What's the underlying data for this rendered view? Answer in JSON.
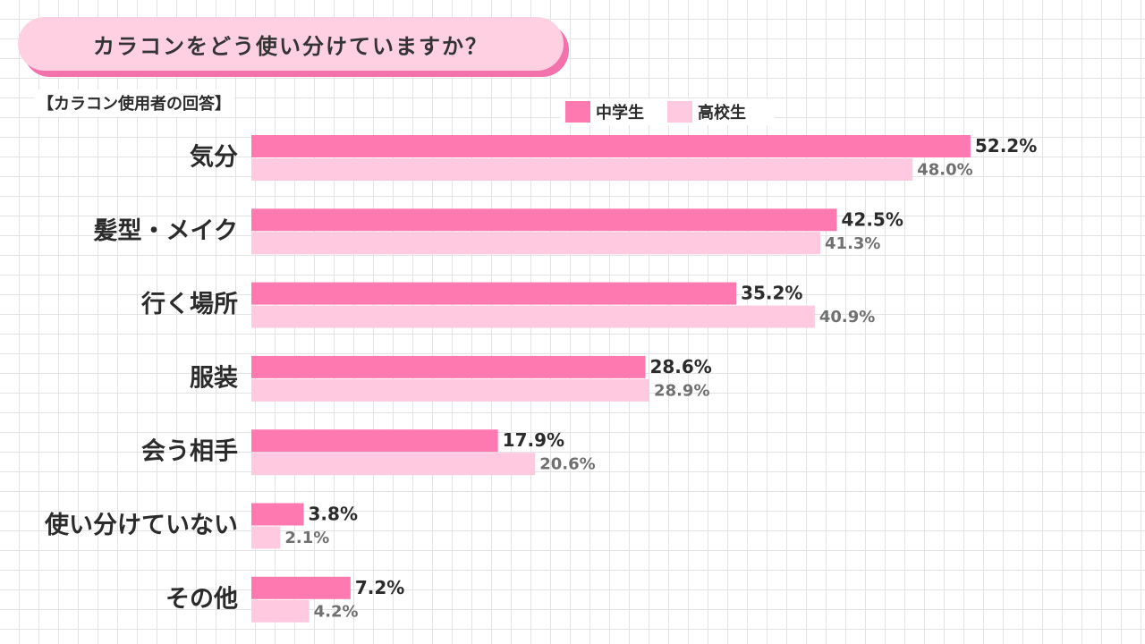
{
  "header": {
    "title": "カラコンをどう使い分けていますか？",
    "subtitle": "【カラコン使用者の回答】"
  },
  "legend": [
    {
      "label": "中学生",
      "color": "#ff79b1"
    },
    {
      "label": "高校生",
      "color": "#ffcadf"
    }
  ],
  "chart_data": {
    "type": "bar",
    "orientation": "horizontal",
    "title": "カラコンをどう使い分けていますか？",
    "subtitle": "【カラコン使用者の回答】",
    "categories": [
      "気分",
      "髪型・メイク",
      "行く場所",
      "服装",
      "会う相手",
      "使い分けていない",
      "その他"
    ],
    "series": [
      {
        "name": "中学生",
        "values": [
          52.2,
          42.5,
          35.2,
          28.6,
          17.9,
          3.8,
          7.2
        ],
        "labels": [
          "52.2%",
          "42.5%",
          "35.2%",
          "28.6%",
          "17.9%",
          "3.8%",
          "7.2%"
        ]
      },
      {
        "name": "高校生",
        "values": [
          48.0,
          41.3,
          40.9,
          28.9,
          20.6,
          2.1,
          4.2
        ],
        "labels": [
          "48.0%",
          "41.3%",
          "40.9%",
          "28.9%",
          "20.6%",
          "2.1%",
          "4.2%"
        ]
      }
    ],
    "unit": "%",
    "legend_position": "top",
    "grid": true,
    "colors": {
      "series_1": "#ff79b1",
      "series_2": "#ffcadf",
      "label_1": "#2b2b2b",
      "label_2": "#707070"
    }
  }
}
